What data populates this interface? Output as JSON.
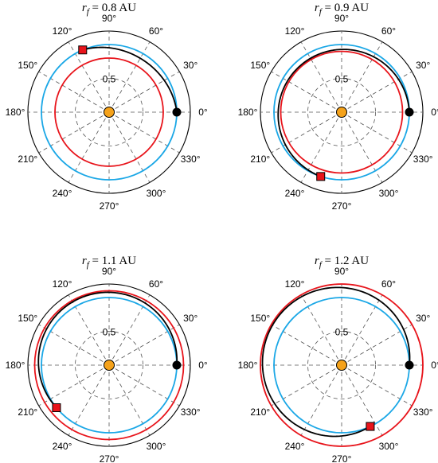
{
  "chart_data": [
    {
      "type": "polar",
      "title": {
        "var": "r",
        "sub": "f",
        "value": "= 0.8 AU"
      },
      "radial_ticks": [
        "0.5"
      ],
      "angle_ticks": [
        "0°",
        "30°",
        "60°",
        "90°",
        "120°",
        "150°",
        "180°",
        "210°",
        "240°",
        "270°",
        "300°",
        "330°"
      ],
      "rlim": [
        0,
        1.2
      ],
      "grid": true,
      "colors": {
        "initial": "#e8141b",
        "final": "#1aa7e6",
        "transfer": "#000000",
        "sun": "#f5a21a",
        "start_marker": "#000000",
        "end_marker": "#e8141b"
      },
      "series": [
        {
          "role": "initial",
          "radius": 0.8
        },
        {
          "role": "final",
          "radius": 1.0
        },
        {
          "role": "transfer",
          "r_start": 1.0,
          "r_end": 0.92,
          "theta_start": 0,
          "theta_end": 113
        }
      ],
      "start_marker": {
        "r": 1.0,
        "theta": 0
      },
      "end_marker": {
        "r": 1.0,
        "theta": 113
      }
    },
    {
      "type": "polar",
      "title": {
        "var": "r",
        "sub": "f",
        "value": "= 0.9 AU"
      },
      "radial_ticks": [
        "0.5"
      ],
      "angle_ticks": [
        "0°",
        "30°",
        "60°",
        "90°",
        "120°",
        "150°",
        "180°",
        "210°",
        "240°",
        "270°",
        "300°",
        "330°"
      ],
      "rlim": [
        0,
        1.2
      ],
      "grid": true,
      "colors": {
        "initial": "#e8141b",
        "final": "#1aa7e6",
        "transfer": "#000000",
        "sun": "#f5a21a",
        "start_marker": "#000000",
        "end_marker": "#e8141b"
      },
      "series": [
        {
          "role": "initial",
          "radius": 0.9
        },
        {
          "role": "final",
          "radius": 1.0
        },
        {
          "role": "transfer",
          "r_start": 1.0,
          "r_end": 0.92,
          "theta_start": 0,
          "theta_end": 252
        }
      ],
      "start_marker": {
        "r": 1.0,
        "theta": 0
      },
      "end_marker": {
        "r": 1.0,
        "theta": 252
      }
    },
    {
      "type": "polar",
      "title": {
        "var": "r",
        "sub": "f",
        "value": "= 1.1 AU"
      },
      "radial_ticks": [
        "0.5"
      ],
      "angle_ticks": [
        "0°",
        "30°",
        "60°",
        "90°",
        "120°",
        "150°",
        "180°",
        "210°",
        "240°",
        "270°",
        "300°",
        "330°"
      ],
      "rlim": [
        0,
        1.2
      ],
      "grid": true,
      "colors": {
        "initial": "#e8141b",
        "final": "#1aa7e6",
        "transfer": "#000000",
        "sun": "#f5a21a",
        "start_marker": "#000000",
        "end_marker": "#e8141b"
      },
      "series": [
        {
          "role": "initial",
          "radius": 1.1
        },
        {
          "role": "final",
          "radius": 1.0
        },
        {
          "role": "transfer",
          "r_start": 1.0,
          "r_end": 1.08,
          "theta_start": 0,
          "theta_end": 219
        }
      ],
      "start_marker": {
        "r": 1.0,
        "theta": 0
      },
      "end_marker": {
        "r": 1.0,
        "theta": 219
      }
    },
    {
      "type": "polar",
      "title": {
        "var": "r",
        "sub": "f",
        "value": "= 1.2 AU"
      },
      "radial_ticks": [
        "0.5"
      ],
      "angle_ticks": [
        "0°",
        "30°",
        "60°",
        "90°",
        "120°",
        "150°",
        "180°",
        "210°",
        "240°",
        "270°",
        "300°",
        "330°"
      ],
      "rlim": [
        0,
        1.2
      ],
      "grid": true,
      "colors": {
        "initial": "#e8141b",
        "final": "#1aa7e6",
        "transfer": "#000000",
        "sun": "#f5a21a",
        "start_marker": "#000000",
        "end_marker": "#e8141b"
      },
      "series": [
        {
          "role": "initial",
          "radius": 1.2
        },
        {
          "role": "final",
          "radius": 1.0
        },
        {
          "role": "transfer",
          "r_start": 1.0,
          "r_end": 1.18,
          "theta_start": 0,
          "theta_end": 295
        }
      ],
      "start_marker": {
        "r": 1.0,
        "theta": 0
      },
      "end_marker": {
        "r": 1.0,
        "theta": 295
      }
    }
  ]
}
